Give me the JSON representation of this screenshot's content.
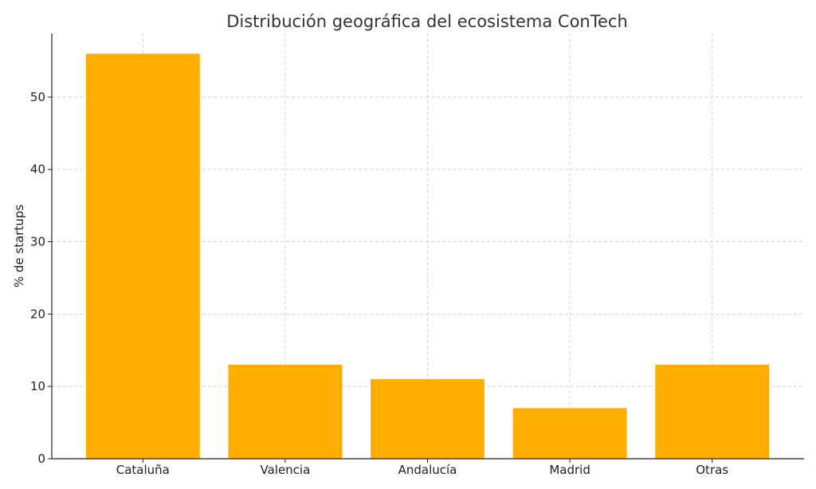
{
  "chart_data": {
    "type": "bar",
    "title": "Distribución geográfica del ecosistema ConTech",
    "xlabel": "",
    "ylabel": "% de startups",
    "categories": [
      "Cataluña",
      "Valencia",
      "Andalucía",
      "Madrid",
      "Otras"
    ],
    "values": [
      56,
      13,
      11,
      7,
      13
    ],
    "ylim": [
      0,
      58.8
    ],
    "yticks": [
      0,
      10,
      20,
      30,
      40,
      50
    ],
    "grid": true,
    "bar_color": "#FFAE00"
  }
}
